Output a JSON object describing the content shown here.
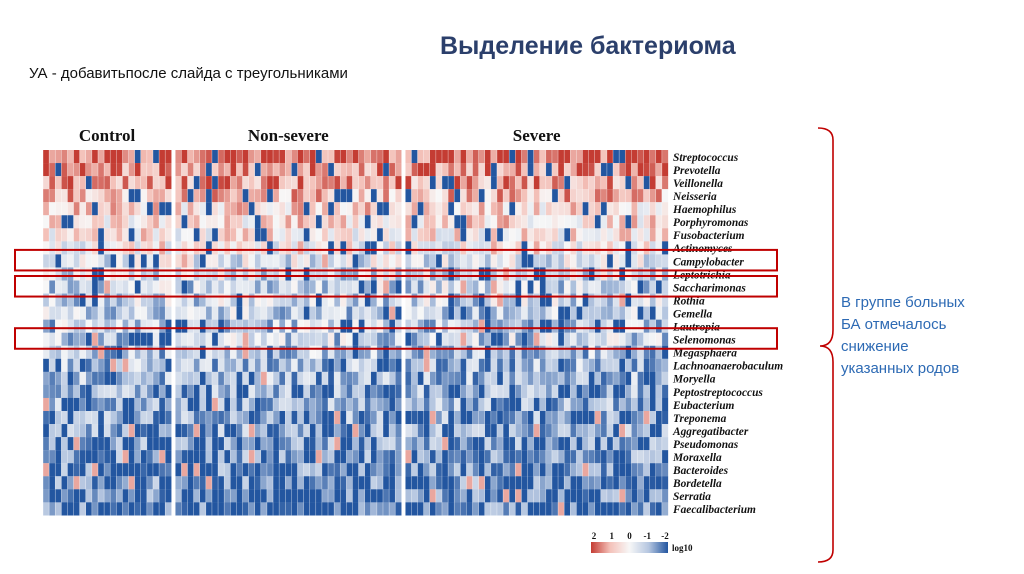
{
  "slide": {
    "title": "Выделение бактериома",
    "note": "УА - добавитьпосле слайда с треугольниками",
    "conclusion_lines": [
      "В группе больных",
      "БА отмечалось",
      "снижение",
      "указанных родов"
    ]
  },
  "chart_data": {
    "type": "heatmap",
    "title": "",
    "groups": [
      {
        "name": "Control",
        "columns": 21
      },
      {
        "name": "Non-severe",
        "columns": 37
      },
      {
        "name": "Severe",
        "columns": 43
      }
    ],
    "rows": [
      "Streptococcus",
      "Prevotella",
      "Veillonella",
      "Neisseria",
      "Haemophilus",
      "Porphyromonas",
      "Fusobacterium",
      "Actinomyces",
      "Campylobacter",
      "Leptotrichia",
      "Saccharimonas",
      "Rothia",
      "Gemella",
      "Lautropia",
      "Selenomonas",
      "Megasphaera",
      "Lachnoanaerobaculum",
      "Moryella",
      "Peptostreptococcus",
      "Eubacterium",
      "Treponema",
      "Aggregatibacter",
      "Pseudomonas",
      "Moraxella",
      "Bacteroides",
      "Bordetella",
      "Serratia",
      "Faecalibacterium"
    ],
    "row_mean_log10": [
      1.8,
      1.4,
      1.2,
      0.9,
      0.6,
      0.5,
      0.3,
      0.1,
      -0.3,
      -0.5,
      -0.6,
      -0.6,
      -0.7,
      -0.8,
      -0.7,
      -0.9,
      -1.0,
      -1.1,
      -1.2,
      -1.2,
      -1.3,
      -1.3,
      -1.5,
      -1.5,
      -1.6,
      -1.6,
      -1.7,
      -1.8
    ],
    "highlighted_rows": [
      "Campylobacter",
      "Saccharimonas",
      "Selenomonas"
    ],
    "legend": {
      "ticks": [
        "2",
        "1",
        "0",
        "-1",
        "-2"
      ],
      "label": "log10",
      "range": [
        2,
        -2
      ],
      "colors": [
        "#c43c33",
        "#f4c2ba",
        "#f7f7f7",
        "#b5c6e0",
        "#2356a0"
      ]
    },
    "accent_color": "#c00000"
  }
}
